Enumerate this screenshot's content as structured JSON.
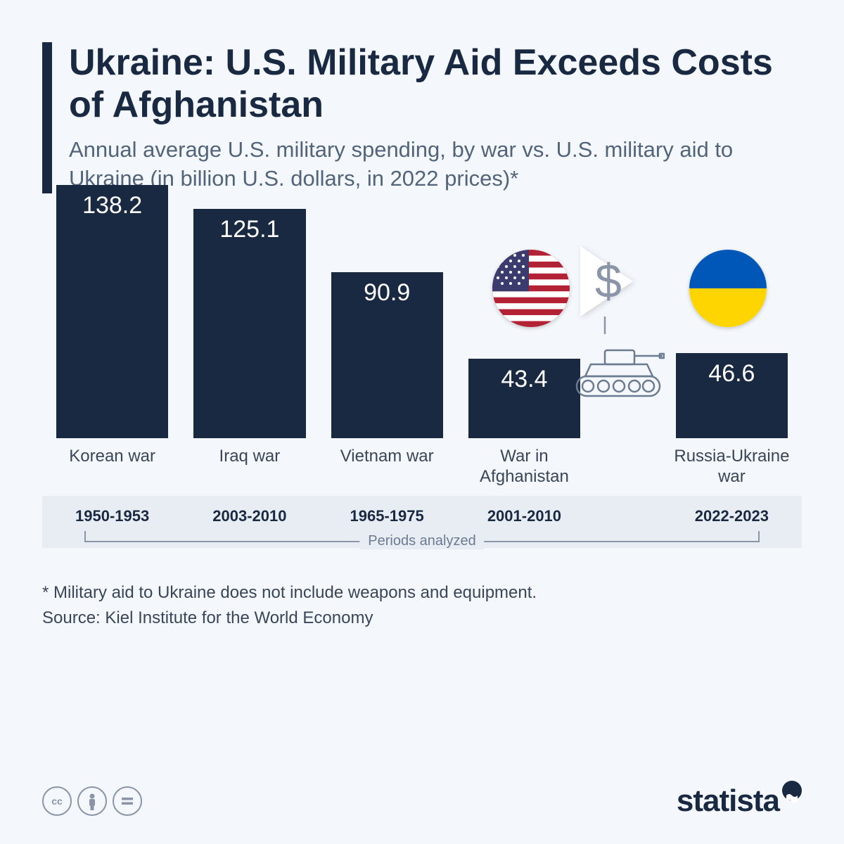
{
  "header": {
    "title": "Ukraine: U.S. Military Aid Exceeds Costs of Afghanistan",
    "subtitle": "Annual average U.S. military spending, by war vs. U.S. military aid to Ukraine (in billion U.S. dollars, in 2022 prices)*"
  },
  "chart": {
    "type": "bar",
    "max_value": 138.2,
    "bar_color": "#1a2942",
    "value_text_color": "#ffffff",
    "label_text_color": "#3a4658",
    "bars": [
      {
        "label": "Korean war",
        "value": 138.2,
        "period": "1950-1953"
      },
      {
        "label": "Iraq war",
        "value": 125.1,
        "period": "2003-2010"
      },
      {
        "label": "Vietnam war",
        "value": 90.9,
        "period": "1965-1975"
      },
      {
        "label": "War in Afghanistan",
        "value": 43.4,
        "period": "2001-2010"
      },
      {
        "label": "Russia-Ukraine war",
        "value": 46.6,
        "period": "2022-2023"
      }
    ],
    "periods_label": "Periods analyzed",
    "background_color": "#f4f7fb",
    "strip_color": "#e8edf3",
    "value_fontsize": 34,
    "label_fontsize": 24,
    "period_fontsize": 22
  },
  "graphic": {
    "us_flag_colors": {
      "red": "#b22234",
      "white": "#ffffff",
      "blue": "#3c3b6e"
    },
    "ua_flag_colors": {
      "blue": "#0057b7",
      "yellow": "#ffd500"
    },
    "tank_stroke": "#6b7b91",
    "dollar_color": "#8a96a8",
    "triangle_color": "#ffffff"
  },
  "footnote": {
    "note": "* Military aid to Ukraine does not include weapons and equipment.",
    "source": "Source: Kiel Institute for the World Economy"
  },
  "footer": {
    "logo": "statista",
    "cc_icons": [
      "cc",
      "by",
      "nd"
    ]
  }
}
